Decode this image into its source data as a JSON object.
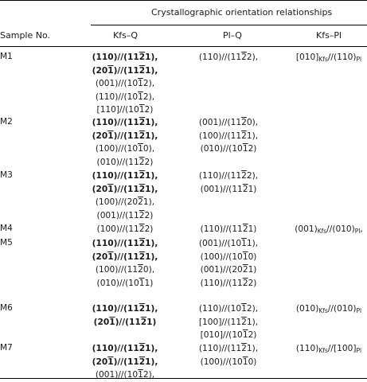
{
  "header": {
    "group_title": "Crystallographic orientation relationships",
    "sample_col": "Sample No.",
    "col_kfs_q": "Kfs–Q",
    "col_pl_q": "Pl–Q",
    "col_kfs_pl": "Kfs–Pl"
  },
  "rows": [
    {
      "sample": "M1",
      "kfs_q": [
        [
          {
            "t": "(110)//(11",
            "b": true
          },
          {
            "t": "2",
            "b": true,
            "o": true
          },
          {
            "t": "1),",
            "b": true
          }
        ],
        [
          {
            "t": "(20",
            "b": true
          },
          {
            "t": "1",
            "b": true,
            "o": true
          },
          {
            "t": ")//(11",
            "b": true
          },
          {
            "t": "2",
            "b": true,
            "o": true
          },
          {
            "t": "1),",
            "b": true
          }
        ],
        [
          {
            "t": "(001)//(10"
          },
          {
            "t": "1",
            "o": true
          },
          {
            "t": "2),"
          }
        ],
        [
          {
            "t": "(110)//(10"
          },
          {
            "t": "1",
            "o": true
          },
          {
            "t": "2),"
          }
        ],
        [
          {
            "t": "[110]//(10"
          },
          {
            "t": "1",
            "o": true
          },
          {
            "t": "2)"
          }
        ]
      ],
      "pl_q": [
        [
          {
            "t": "(110)//(11"
          },
          {
            "t": "2",
            "o": true
          },
          {
            "t": "2),"
          }
        ]
      ],
      "kfs_pl": [
        [
          {
            "t": "[010]"
          },
          {
            "t": "Kfs",
            "s": true
          },
          {
            "t": "//(110)"
          },
          {
            "t": "Pl",
            "s": true
          }
        ]
      ]
    },
    {
      "sample": "M2",
      "kfs_q": [
        [
          {
            "t": "(110)//(11",
            "b": true
          },
          {
            "t": "2",
            "b": true,
            "o": true
          },
          {
            "t": "1),",
            "b": true
          }
        ],
        [
          {
            "t": "(20",
            "b": true
          },
          {
            "t": "1",
            "b": true,
            "o": true
          },
          {
            "t": ")//(11",
            "b": true
          },
          {
            "t": "2",
            "b": true,
            "o": true
          },
          {
            "t": "1),",
            "b": true
          }
        ],
        [
          {
            "t": "(100)//(10"
          },
          {
            "t": "1",
            "o": true
          },
          {
            "t": "0),"
          }
        ],
        [
          {
            "t": "(010)//(11"
          },
          {
            "t": "2",
            "o": true
          },
          {
            "t": "2)"
          }
        ]
      ],
      "pl_q": [
        [
          {
            "t": "(001)//(11"
          },
          {
            "t": "2",
            "o": true
          },
          {
            "t": "0),"
          }
        ],
        [
          {
            "t": "(100)//(11"
          },
          {
            "t": "2",
            "o": true
          },
          {
            "t": "1),"
          }
        ],
        [
          {
            "t": "(010)//(10"
          },
          {
            "t": "1",
            "o": true
          },
          {
            "t": "2)"
          }
        ]
      ],
      "kfs_pl": []
    },
    {
      "sample": "M3",
      "kfs_q": [
        [
          {
            "t": "(110)//(11",
            "b": true
          },
          {
            "t": "2",
            "b": true,
            "o": true
          },
          {
            "t": "1),",
            "b": true
          }
        ],
        [
          {
            "t": "(20",
            "b": true
          },
          {
            "t": "1",
            "b": true,
            "o": true
          },
          {
            "t": ")//(11",
            "b": true
          },
          {
            "t": "2",
            "b": true,
            "o": true
          },
          {
            "t": "1),",
            "b": true
          }
        ],
        [
          {
            "t": "(100)//(20"
          },
          {
            "t": "2",
            "o": true
          },
          {
            "t": "1),"
          }
        ],
        [
          {
            "t": "(001)//(11"
          },
          {
            "t": "2",
            "o": true
          },
          {
            "t": "2)"
          }
        ]
      ],
      "pl_q": [
        [
          {
            "t": "(110)//(11"
          },
          {
            "t": "2",
            "o": true
          },
          {
            "t": "2),"
          }
        ],
        [
          {
            "t": "(001)//(11"
          },
          {
            "t": "2",
            "o": true
          },
          {
            "t": "1)"
          }
        ]
      ],
      "kfs_pl": []
    },
    {
      "sample": "M4",
      "kfs_q": [
        [
          {
            "t": "(100)//(11"
          },
          {
            "t": "2",
            "o": true
          },
          {
            "t": "2)"
          }
        ]
      ],
      "pl_q": [
        [
          {
            "t": "(110)//(11"
          },
          {
            "t": "2",
            "o": true
          },
          {
            "t": "1)"
          }
        ]
      ],
      "kfs_pl": [
        [
          {
            "t": "(001)"
          },
          {
            "t": "Kfs",
            "s": true
          },
          {
            "t": "//(010)"
          },
          {
            "t": "Pl",
            "s": true
          },
          {
            "t": ","
          }
        ]
      ]
    },
    {
      "sample": "M5",
      "kfs_q": [
        [
          {
            "t": "(110)//(11",
            "b": true
          },
          {
            "t": "2",
            "b": true,
            "o": true
          },
          {
            "t": "1),",
            "b": true
          }
        ],
        [
          {
            "t": "(20",
            "b": true
          },
          {
            "t": "1",
            "b": true,
            "o": true
          },
          {
            "t": ")//(11",
            "b": true
          },
          {
            "t": "2",
            "b": true,
            "o": true
          },
          {
            "t": "1),",
            "b": true
          }
        ],
        [
          {
            "t": "(100)//(11"
          },
          {
            "t": "2",
            "o": true
          },
          {
            "t": "0),"
          }
        ],
        [
          {
            "t": "(010)//(10"
          },
          {
            "t": "1",
            "o": true
          },
          {
            "t": "1)"
          }
        ]
      ],
      "pl_q": [
        [
          {
            "t": "(001)//(10"
          },
          {
            "t": "1",
            "o": true
          },
          {
            "t": "1),"
          }
        ],
        [
          {
            "t": "(100)//(10"
          },
          {
            "t": "1",
            "o": true
          },
          {
            "t": "0)"
          }
        ],
        [
          {
            "t": "(001)//(20"
          },
          {
            "t": "2",
            "o": true
          },
          {
            "t": "1)"
          }
        ],
        [
          {
            "t": "(110)//(11"
          },
          {
            "t": "2",
            "o": true
          },
          {
            "t": "2)"
          }
        ]
      ],
      "kfs_pl": []
    },
    {
      "sample": "M6",
      "kfs_q": [
        [
          {
            "t": "(110)//(11",
            "b": true
          },
          {
            "t": "2",
            "b": true,
            "o": true
          },
          {
            "t": "1),",
            "b": true
          }
        ],
        [
          {
            "t": "(20",
            "b": true
          },
          {
            "t": "1",
            "b": true,
            "o": true
          },
          {
            "t": ")//(11",
            "b": true
          },
          {
            "t": "2",
            "b": true,
            "o": true
          },
          {
            "t": "1)",
            "b": true
          }
        ]
      ],
      "pl_q": [
        [
          {
            "t": "(110)//(10"
          },
          {
            "t": "1",
            "o": true
          },
          {
            "t": "2),"
          }
        ],
        [
          {
            "t": "[100]//(11"
          },
          {
            "t": "2",
            "o": true
          },
          {
            "t": "1),"
          }
        ],
        [
          {
            "t": "[010]//(10"
          },
          {
            "t": "1",
            "o": true
          },
          {
            "t": "2)"
          }
        ]
      ],
      "kfs_pl": [
        [
          {
            "t": "(010)"
          },
          {
            "t": "Kfs",
            "s": true
          },
          {
            "t": "//(010)"
          },
          {
            "t": "Pl",
            "s": true
          }
        ]
      ]
    },
    {
      "sample": "M7",
      "kfs_q": [
        [
          {
            "t": "(110)//(11",
            "b": true
          },
          {
            "t": "2",
            "b": true,
            "o": true
          },
          {
            "t": "1),",
            "b": true
          }
        ],
        [
          {
            "t": "(20",
            "b": true
          },
          {
            "t": "1",
            "b": true,
            "o": true
          },
          {
            "t": ")//(11",
            "b": true
          },
          {
            "t": "2",
            "b": true,
            "o": true
          },
          {
            "t": "1),",
            "b": true
          }
        ],
        [
          {
            "t": "(001)//(10"
          },
          {
            "t": "1",
            "o": true
          },
          {
            "t": "2),"
          }
        ]
      ],
      "pl_q": [
        [
          {
            "t": "(110)//(11"
          },
          {
            "t": "2",
            "o": true
          },
          {
            "t": "1),"
          }
        ],
        [
          {
            "t": "(100)//(10"
          },
          {
            "t": "1",
            "o": true
          },
          {
            "t": "0)"
          }
        ]
      ],
      "kfs_pl": [
        [
          {
            "t": "(110)"
          },
          {
            "t": "Kfs",
            "s": true
          },
          {
            "t": "//[100]"
          },
          {
            "t": "Pl",
            "s": true
          }
        ]
      ]
    }
  ]
}
